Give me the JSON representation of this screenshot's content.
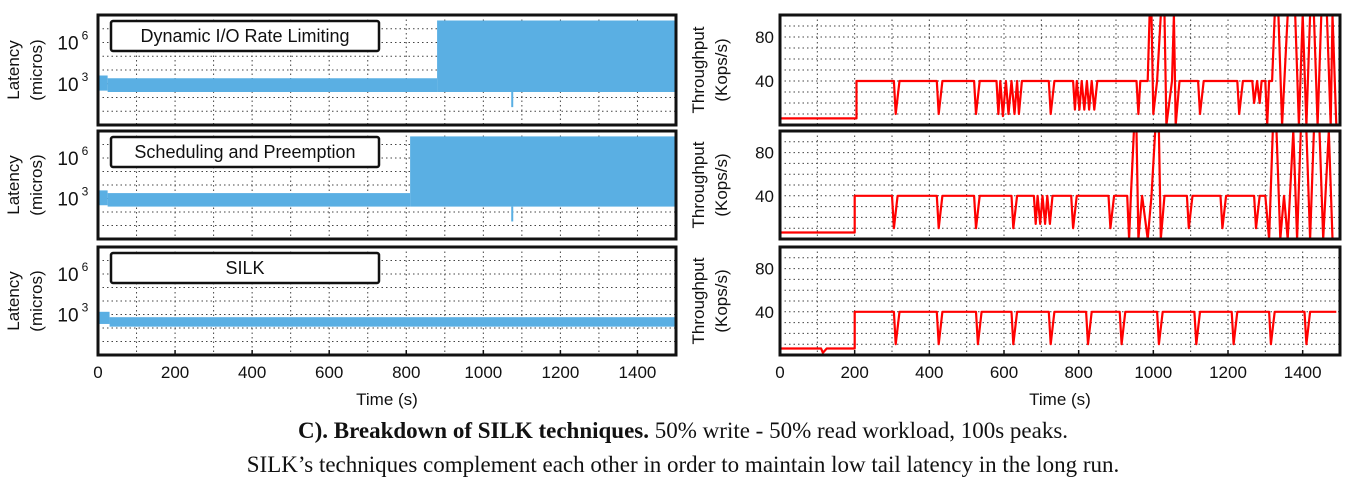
{
  "colors": {
    "latency": "#5aafe3",
    "throughput": "#ff0000",
    "frame": "#111111",
    "grid": "#444444"
  },
  "caption": {
    "bold": "C). Breakdown of SILK techniques.",
    "rest": " 50% write - 50% read workload, 100s peaks.",
    "line2": "SILK’s techniques complement each other in order to maintain low tail latency in the long run."
  },
  "chart_data": [
    {
      "type": "area",
      "panel": "latency",
      "label_box": "Dynamic I/O Rate Limiting",
      "ylabel": "Latency\n(micros)",
      "yscale": "log",
      "ylim_log10": [
        0,
        8
      ],
      "yticks": [
        {
          "exp": 3,
          "label": "10",
          "sup": "3"
        },
        {
          "exp": 6,
          "label": "10",
          "sup": "6"
        }
      ],
      "xlim": [
        0,
        1500
      ],
      "xticks": [],
      "xlabel": "",
      "series": [
        {
          "segments": [
            {
              "x": [
                0,
                25
              ],
              "low_log10": 2.5,
              "high_log10": 3.6
            },
            {
              "x": [
                25,
                880
              ],
              "low_log10": 2.4,
              "high_log10": 3.4
            },
            {
              "x": [
                880,
                1500
              ],
              "low_log10": 2.4,
              "high_log10": 7.6
            }
          ],
          "dips": [
            {
              "x": 1075,
              "low_log10": 1.3
            }
          ]
        }
      ]
    },
    {
      "type": "line",
      "panel": "throughput",
      "ylabel": "Throughput\n(Kops/s)",
      "ylim": [
        0,
        100
      ],
      "yticks": [
        40,
        80
      ],
      "xlim": [
        0,
        1500
      ],
      "xticks": [],
      "xlabel": "",
      "series": [
        {
          "values": [
            [
              0,
              6
            ],
            [
              205,
              6
            ],
            [
              205,
              40
            ],
            [
              305,
              40
            ],
            [
              310,
              10
            ],
            [
              320,
              40
            ],
            [
              420,
              40
            ],
            [
              425,
              10
            ],
            [
              435,
              40
            ],
            [
              520,
              40
            ],
            [
              525,
              10
            ],
            [
              535,
              40
            ],
            [
              580,
              40
            ],
            [
              585,
              10
            ],
            [
              590,
              40
            ],
            [
              597,
              8
            ],
            [
              605,
              40
            ],
            [
              612,
              10
            ],
            [
              620,
              40
            ],
            [
              628,
              10
            ],
            [
              635,
              40
            ],
            [
              640,
              10
            ],
            [
              648,
              40
            ],
            [
              720,
              40
            ],
            [
              725,
              10
            ],
            [
              735,
              40
            ],
            [
              785,
              40
            ],
            [
              790,
              14
            ],
            [
              795,
              40
            ],
            [
              802,
              14
            ],
            [
              808,
              40
            ],
            [
              815,
              14
            ],
            [
              822,
              40
            ],
            [
              828,
              14
            ],
            [
              835,
              40
            ],
            [
              842,
              14
            ],
            [
              850,
              40
            ],
            [
              955,
              40
            ],
            [
              960,
              10
            ],
            [
              965,
              40
            ],
            [
              985,
              40
            ],
            [
              990,
              100
            ],
            [
              995,
              100
            ],
            [
              1000,
              10
            ],
            [
              1010,
              40
            ],
            [
              1020,
              100
            ],
            [
              1030,
              100
            ],
            [
              1035,
              0
            ],
            [
              1050,
              40
            ],
            [
              1055,
              100
            ],
            [
              1060,
              0
            ],
            [
              1070,
              40
            ],
            [
              1120,
              40
            ],
            [
              1125,
              10
            ],
            [
              1135,
              40
            ],
            [
              1225,
              40
            ],
            [
              1230,
              10
            ],
            [
              1240,
              40
            ],
            [
              1265,
              40
            ],
            [
              1270,
              20
            ],
            [
              1278,
              40
            ],
            [
              1285,
              20
            ],
            [
              1290,
              40
            ],
            [
              1300,
              40
            ],
            [
              1305,
              0
            ],
            [
              1310,
              40
            ],
            [
              1318,
              40
            ],
            [
              1325,
              100
            ],
            [
              1335,
              100
            ],
            [
              1345,
              0
            ],
            [
              1360,
              100
            ],
            [
              1380,
              100
            ],
            [
              1390,
              0
            ],
            [
              1400,
              100
            ],
            [
              1410,
              0
            ],
            [
              1420,
              100
            ],
            [
              1430,
              100
            ],
            [
              1440,
              0
            ],
            [
              1450,
              100
            ],
            [
              1465,
              100
            ],
            [
              1475,
              0
            ],
            [
              1480,
              100
            ],
            [
              1490,
              0
            ]
          ]
        }
      ]
    },
    {
      "type": "area",
      "panel": "latency",
      "label_box": "Scheduling and Preemption",
      "ylabel": "Latency\n(micros)",
      "yscale": "log",
      "ylim_log10": [
        0,
        8
      ],
      "yticks": [
        {
          "exp": 3,
          "label": "10",
          "sup": "3"
        },
        {
          "exp": 6,
          "label": "10",
          "sup": "6"
        }
      ],
      "xlim": [
        0,
        1500
      ],
      "xticks": [],
      "xlabel": "",
      "series": [
        {
          "segments": [
            {
              "x": [
                0,
                25
              ],
              "low_log10": 2.5,
              "high_log10": 3.6
            },
            {
              "x": [
                25,
                810
              ],
              "low_log10": 2.4,
              "high_log10": 3.4
            },
            {
              "x": [
                810,
                1500
              ],
              "low_log10": 2.4,
              "high_log10": 7.6
            }
          ],
          "dips": [
            {
              "x": 1075,
              "low_log10": 1.3
            }
          ]
        }
      ]
    },
    {
      "type": "line",
      "panel": "throughput",
      "ylabel": "Throughput\n(Kops/s)",
      "ylim": [
        0,
        100
      ],
      "yticks": [
        40,
        80
      ],
      "xlim": [
        0,
        1500
      ],
      "xticks": [],
      "xlabel": "",
      "series": [
        {
          "values": [
            [
              0,
              6
            ],
            [
              200,
              6
            ],
            [
              200,
              40
            ],
            [
              300,
              40
            ],
            [
              305,
              10
            ],
            [
              315,
              40
            ],
            [
              420,
              40
            ],
            [
              425,
              10
            ],
            [
              435,
              40
            ],
            [
              520,
              40
            ],
            [
              525,
              10
            ],
            [
              535,
              40
            ],
            [
              620,
              40
            ],
            [
              625,
              10
            ],
            [
              635,
              40
            ],
            [
              680,
              40
            ],
            [
              685,
              14
            ],
            [
              690,
              40
            ],
            [
              697,
              14
            ],
            [
              703,
              40
            ],
            [
              710,
              14
            ],
            [
              716,
              40
            ],
            [
              723,
              14
            ],
            [
              730,
              40
            ],
            [
              780,
              40
            ],
            [
              785,
              10
            ],
            [
              795,
              40
            ],
            [
              880,
              40
            ],
            [
              885,
              10
            ],
            [
              895,
              40
            ],
            [
              930,
              40
            ],
            [
              935,
              0
            ],
            [
              940,
              40
            ],
            [
              948,
              100
            ],
            [
              955,
              100
            ],
            [
              960,
              0
            ],
            [
              970,
              40
            ],
            [
              985,
              0
            ],
            [
              995,
              40
            ],
            [
              1005,
              100
            ],
            [
              1015,
              100
            ],
            [
              1020,
              0
            ],
            [
              1030,
              40
            ],
            [
              1090,
              40
            ],
            [
              1095,
              10
            ],
            [
              1105,
              40
            ],
            [
              1180,
              40
            ],
            [
              1185,
              10
            ],
            [
              1195,
              40
            ],
            [
              1270,
              40
            ],
            [
              1275,
              10
            ],
            [
              1285,
              40
            ],
            [
              1300,
              40
            ],
            [
              1310,
              0
            ],
            [
              1320,
              100
            ],
            [
              1330,
              100
            ],
            [
              1340,
              0
            ],
            [
              1350,
              40
            ],
            [
              1360,
              0
            ],
            [
              1375,
              100
            ],
            [
              1385,
              0
            ],
            [
              1395,
              100
            ],
            [
              1410,
              100
            ],
            [
              1420,
              0
            ],
            [
              1430,
              100
            ],
            [
              1445,
              100
            ],
            [
              1455,
              0
            ],
            [
              1470,
              100
            ],
            [
              1480,
              0
            ]
          ]
        }
      ]
    },
    {
      "type": "area",
      "panel": "latency",
      "label_box": "SILK",
      "ylabel": "Latency\n(micros)",
      "yscale": "log",
      "ylim_log10": [
        0,
        8
      ],
      "yticks": [
        {
          "exp": 3,
          "label": "10",
          "sup": "3"
        },
        {
          "exp": 6,
          "label": "10",
          "sup": "6"
        }
      ],
      "xlim": [
        0,
        1500
      ],
      "xticks": [
        0,
        200,
        400,
        600,
        800,
        1000,
        1200,
        1400
      ],
      "xlabel": "Time (s)",
      "series": [
        {
          "segments": [
            {
              "x": [
                0,
                30
              ],
              "low_log10": 2.3,
              "high_log10": 3.2
            },
            {
              "x": [
                30,
                1500
              ],
              "low_log10": 2.1,
              "high_log10": 2.8
            }
          ],
          "dips": []
        }
      ]
    },
    {
      "type": "line",
      "panel": "throughput",
      "ylabel": "Throughput\n(Kops/s)",
      "ylim": [
        0,
        100
      ],
      "yticks": [
        40,
        80
      ],
      "xlim": [
        0,
        1500
      ],
      "xticks": [
        0,
        200,
        400,
        600,
        800,
        1000,
        1200,
        1400
      ],
      "xlabel": "Time (s)",
      "series": [
        {
          "values": [
            [
              0,
              6
            ],
            [
              110,
              6
            ],
            [
              115,
              2
            ],
            [
              125,
              6
            ],
            [
              200,
              6
            ],
            [
              200,
              40
            ],
            [
              305,
              40
            ],
            [
              310,
              10
            ],
            [
              320,
              40
            ],
            [
              420,
              40
            ],
            [
              425,
              10
            ],
            [
              435,
              40
            ],
            [
              525,
              40
            ],
            [
              530,
              10
            ],
            [
              540,
              40
            ],
            [
              620,
              40
            ],
            [
              625,
              10
            ],
            [
              635,
              40
            ],
            [
              720,
              40
            ],
            [
              725,
              10
            ],
            [
              735,
              40
            ],
            [
              820,
              40
            ],
            [
              825,
              10
            ],
            [
              835,
              40
            ],
            [
              910,
              40
            ],
            [
              915,
              10
            ],
            [
              925,
              40
            ],
            [
              1010,
              40
            ],
            [
              1015,
              10
            ],
            [
              1025,
              40
            ],
            [
              1110,
              40
            ],
            [
              1115,
              10
            ],
            [
              1125,
              40
            ],
            [
              1210,
              40
            ],
            [
              1215,
              10
            ],
            [
              1225,
              40
            ],
            [
              1310,
              40
            ],
            [
              1315,
              10
            ],
            [
              1325,
              40
            ],
            [
              1405,
              40
            ],
            [
              1410,
              10
            ],
            [
              1420,
              40
            ],
            [
              1490,
              40
            ]
          ]
        }
      ]
    }
  ]
}
